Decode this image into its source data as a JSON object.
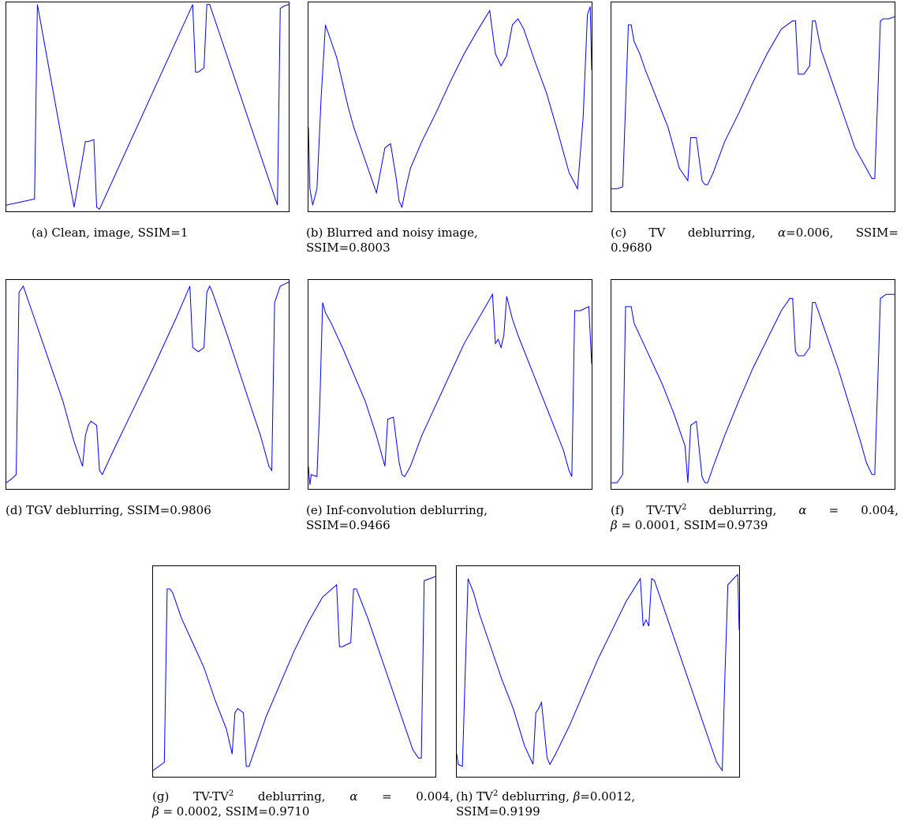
{
  "chart_data": [
    {
      "id": "a",
      "type": "line",
      "caption_lines": [
        "(a) Clean, image, SSIM=1"
      ],
      "x": [
        0,
        0.1,
        0.11,
        0.24,
        0.28,
        0.29,
        0.31,
        0.32,
        0.33,
        0.66,
        0.67,
        0.68,
        0.7,
        0.71,
        0.72,
        0.96,
        0.97,
        0.98,
        1
      ],
      "y": [
        0.02,
        0.05,
        1,
        0.01,
        0.33,
        0.33,
        0.34,
        0.01,
        0,
        1,
        0.67,
        0.67,
        0.69,
        1,
        1,
        0.02,
        0.98,
        0.99,
        1
      ]
    },
    {
      "id": "b",
      "type": "line",
      "caption_lines": [
        "(b) Blurred and noisy image,",
        "SSIM=0.8003"
      ],
      "x": [
        0,
        0.005,
        0.015,
        0.03,
        0.045,
        0.06,
        0.08,
        0.1,
        0.12,
        0.14,
        0.16,
        0.2,
        0.24,
        0.27,
        0.29,
        0.31,
        0.32,
        0.33,
        0.34,
        0.36,
        0.4,
        0.45,
        0.5,
        0.55,
        0.6,
        0.64,
        0.66,
        0.68,
        0.7,
        0.72,
        0.74,
        0.76,
        0.8,
        0.84,
        0.88,
        0.92,
        0.95,
        0.97,
        0.985,
        0.995,
        1
      ],
      "y": [
        0.4,
        0.1,
        0.02,
        0.1,
        0.55,
        0.9,
        0.82,
        0.74,
        0.62,
        0.5,
        0.4,
        0.24,
        0.08,
        0.3,
        0.32,
        0.15,
        0.04,
        0.01,
        0.08,
        0.2,
        0.33,
        0.47,
        0.62,
        0.76,
        0.88,
        0.97,
        0.76,
        0.7,
        0.75,
        0.9,
        0.93,
        0.88,
        0.72,
        0.57,
        0.38,
        0.18,
        0.1,
        0.45,
        0.95,
        0.99,
        0.68
      ]
    },
    {
      "id": "c",
      "type": "line",
      "caption_lines": [
        "(c) TV deblurring, α=0.006, SSIM=",
        "0.9680"
      ],
      "x": [
        0,
        0.02,
        0.04,
        0.06,
        0.07,
        0.08,
        0.1,
        0.12,
        0.16,
        0.2,
        0.24,
        0.27,
        0.28,
        0.3,
        0.32,
        0.33,
        0.34,
        0.36,
        0.4,
        0.45,
        0.5,
        0.55,
        0.6,
        0.64,
        0.65,
        0.66,
        0.68,
        0.7,
        0.71,
        0.72,
        0.74,
        0.78,
        0.82,
        0.86,
        0.9,
        0.92,
        0.93,
        0.95,
        0.96,
        0.98,
        1
      ],
      "y": [
        0.1,
        0.1,
        0.11,
        0.9,
        0.9,
        0.82,
        0.76,
        0.68,
        0.54,
        0.4,
        0.2,
        0.14,
        0.35,
        0.35,
        0.14,
        0.12,
        0.12,
        0.18,
        0.33,
        0.47,
        0.62,
        0.76,
        0.88,
        0.92,
        0.92,
        0.66,
        0.66,
        0.7,
        0.92,
        0.92,
        0.78,
        0.62,
        0.46,
        0.3,
        0.2,
        0.15,
        0.15,
        0.92,
        0.93,
        0.93,
        0.94
      ]
    },
    {
      "id": "d",
      "type": "line",
      "caption_lines": [
        "(d) TGV deblurring, SSIM=0.9806"
      ],
      "x": [
        0,
        0.02,
        0.035,
        0.045,
        0.06,
        0.1,
        0.15,
        0.2,
        0.24,
        0.27,
        0.28,
        0.29,
        0.3,
        0.32,
        0.33,
        0.34,
        0.38,
        0.45,
        0.52,
        0.6,
        0.65,
        0.66,
        0.68,
        0.7,
        0.71,
        0.72,
        0.73,
        0.78,
        0.84,
        0.9,
        0.93,
        0.94,
        0.95,
        0.97,
        1
      ],
      "y": [
        0.02,
        0.04,
        0.06,
        0.95,
        0.98,
        0.82,
        0.62,
        0.42,
        0.22,
        0.1,
        0.25,
        0.3,
        0.32,
        0.3,
        0.08,
        0.06,
        0.18,
        0.38,
        0.58,
        0.82,
        0.98,
        0.68,
        0.66,
        0.68,
        0.95,
        0.98,
        0.95,
        0.75,
        0.5,
        0.25,
        0.1,
        0.08,
        0.9,
        0.98,
        1
      ]
    },
    {
      "id": "e",
      "type": "line",
      "caption_lines": [
        "(e) Inf-convolution deblurring,",
        "SSIM=0.9466"
      ],
      "x": [
        0,
        0.005,
        0.01,
        0.03,
        0.04,
        0.05,
        0.06,
        0.08,
        0.12,
        0.16,
        0.2,
        0.24,
        0.27,
        0.28,
        0.3,
        0.32,
        0.33,
        0.34,
        0.36,
        0.4,
        0.45,
        0.5,
        0.55,
        0.6,
        0.65,
        0.66,
        0.67,
        0.68,
        0.69,
        0.7,
        0.72,
        0.74,
        0.78,
        0.82,
        0.86,
        0.9,
        0.92,
        0.93,
        0.94,
        0.96,
        0.99,
        1
      ],
      "y": [
        0.1,
        0.01,
        0.06,
        0.05,
        0.4,
        0.9,
        0.85,
        0.8,
        0.68,
        0.55,
        0.42,
        0.25,
        0.1,
        0.33,
        0.34,
        0.12,
        0.06,
        0.05,
        0.1,
        0.25,
        0.4,
        0.55,
        0.7,
        0.82,
        0.94,
        0.7,
        0.72,
        0.68,
        0.74,
        0.93,
        0.82,
        0.74,
        0.6,
        0.46,
        0.32,
        0.18,
        0.08,
        0.05,
        0.86,
        0.86,
        0.88,
        0.6
      ]
    },
    {
      "id": "f",
      "type": "line",
      "caption_lines": [
        "(f) TV-TV² deblurring, α = 0.004,",
        "β = 0.0001, SSIM=0.9739"
      ],
      "x": [
        0,
        0.02,
        0.04,
        0.05,
        0.06,
        0.07,
        0.08,
        0.1,
        0.14,
        0.18,
        0.22,
        0.26,
        0.27,
        0.28,
        0.3,
        0.32,
        0.33,
        0.34,
        0.36,
        0.4,
        0.45,
        0.5,
        0.55,
        0.6,
        0.63,
        0.64,
        0.65,
        0.66,
        0.68,
        0.7,
        0.71,
        0.72,
        0.76,
        0.8,
        0.84,
        0.88,
        0.9,
        0.92,
        0.93,
        0.95,
        0.97,
        1
      ],
      "y": [
        0.02,
        0.02,
        0.06,
        0.88,
        0.88,
        0.88,
        0.8,
        0.74,
        0.62,
        0.5,
        0.36,
        0.2,
        0.02,
        0.3,
        0.32,
        0.05,
        0.02,
        0.02,
        0.1,
        0.25,
        0.42,
        0.58,
        0.72,
        0.86,
        0.92,
        0.92,
        0.66,
        0.64,
        0.64,
        0.68,
        0.9,
        0.9,
        0.74,
        0.58,
        0.4,
        0.22,
        0.12,
        0.06,
        0.06,
        0.92,
        0.94,
        0.94
      ]
    },
    {
      "id": "g",
      "type": "line",
      "caption_lines": [
        "(g) TV-TV² deblurring, α = 0.004,",
        "β = 0.0002, SSIM=0.9710"
      ],
      "x": [
        0,
        0.02,
        0.04,
        0.05,
        0.06,
        0.07,
        0.08,
        0.1,
        0.14,
        0.18,
        0.22,
        0.26,
        0.28,
        0.29,
        0.3,
        0.32,
        0.33,
        0.34,
        0.36,
        0.4,
        0.45,
        0.5,
        0.55,
        0.6,
        0.65,
        0.66,
        0.67,
        0.7,
        0.71,
        0.72,
        0.76,
        0.8,
        0.84,
        0.88,
        0.92,
        0.94,
        0.95,
        0.96,
        0.98,
        1
      ],
      "y": [
        0.02,
        0.04,
        0.06,
        0.9,
        0.9,
        0.88,
        0.84,
        0.76,
        0.64,
        0.52,
        0.36,
        0.22,
        0.1,
        0.3,
        0.32,
        0.3,
        0.04,
        0.04,
        0.12,
        0.28,
        0.44,
        0.6,
        0.74,
        0.86,
        0.92,
        0.62,
        0.62,
        0.64,
        0.9,
        0.9,
        0.76,
        0.6,
        0.44,
        0.28,
        0.12,
        0.08,
        0.08,
        0.94,
        0.95,
        0.96
      ]
    },
    {
      "id": "h",
      "type": "line",
      "caption_lines": [
        "(h) TV² deblurring, β=0.0012,",
        "SSIM=0.9199"
      ],
      "x": [
        0,
        0.005,
        0.02,
        0.04,
        0.06,
        0.08,
        0.12,
        0.16,
        0.2,
        0.24,
        0.27,
        0.28,
        0.29,
        0.3,
        0.32,
        0.33,
        0.35,
        0.4,
        0.45,
        0.5,
        0.55,
        0.6,
        0.65,
        0.66,
        0.67,
        0.68,
        0.69,
        0.7,
        0.72,
        0.76,
        0.8,
        0.84,
        0.88,
        0.92,
        0.94,
        0.95,
        0.96,
        0.98,
        0.995,
        1
      ],
      "y": [
        0.1,
        0.05,
        0.04,
        0.95,
        0.88,
        0.78,
        0.62,
        0.46,
        0.32,
        0.14,
        0.05,
        0.3,
        0.32,
        0.35,
        0.08,
        0.05,
        0.1,
        0.24,
        0.4,
        0.56,
        0.7,
        0.84,
        0.95,
        0.72,
        0.75,
        0.72,
        0.95,
        0.94,
        0.86,
        0.7,
        0.54,
        0.38,
        0.22,
        0.06,
        0.02,
        0.5,
        0.92,
        0.95,
        0.97,
        0.7
      ]
    }
  ]
}
